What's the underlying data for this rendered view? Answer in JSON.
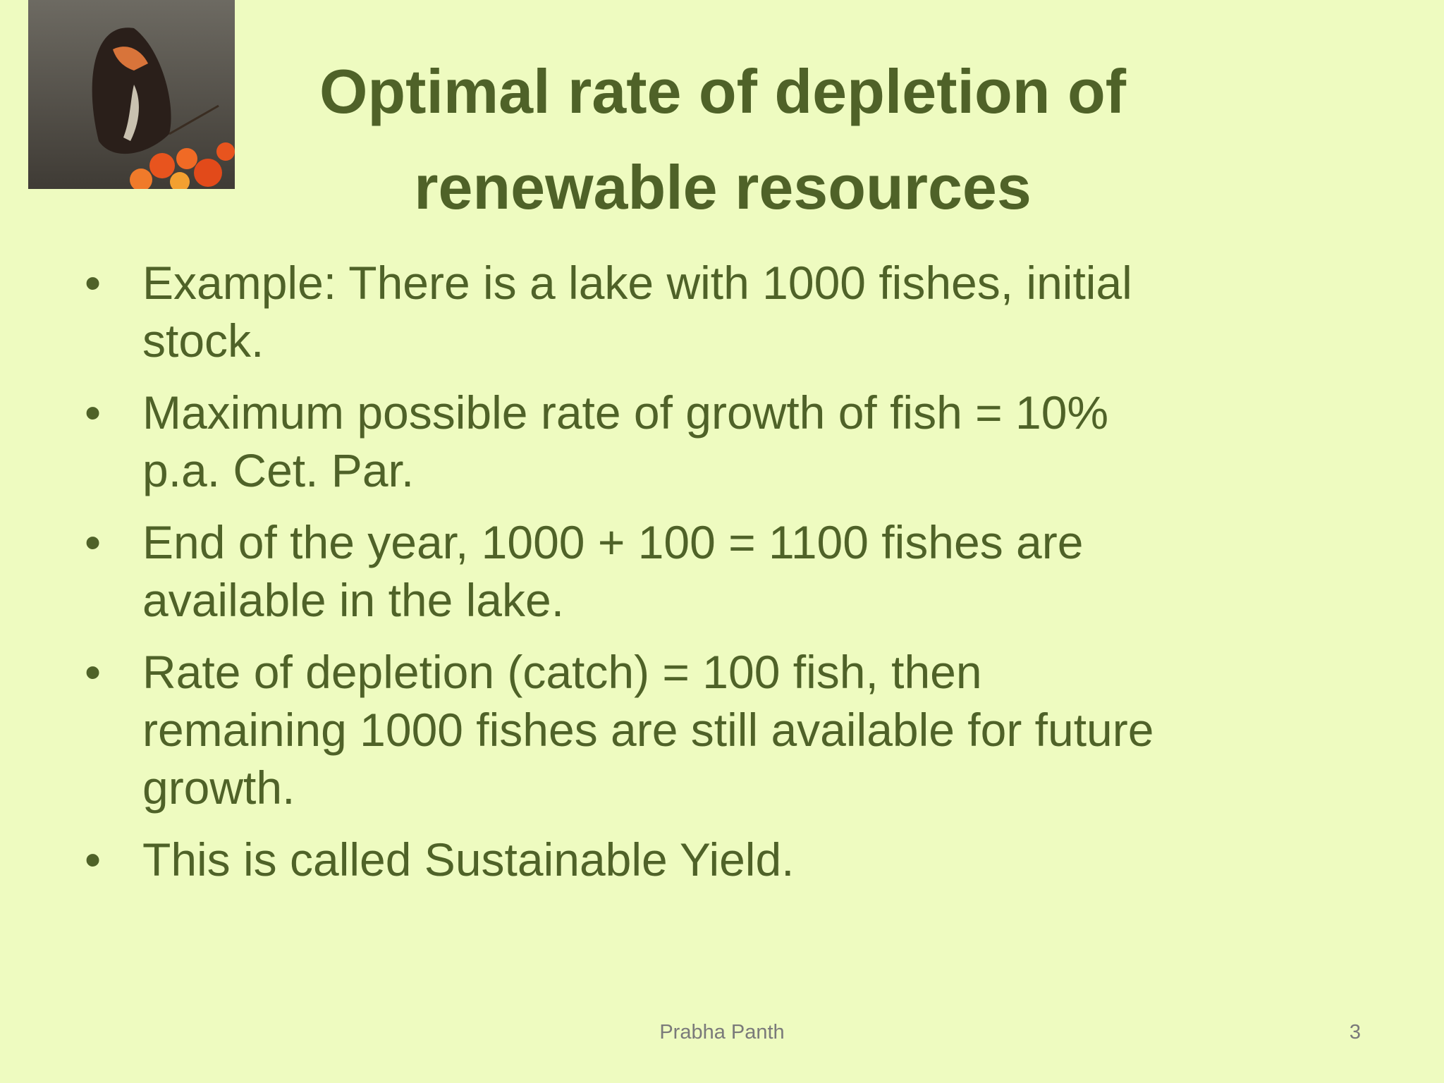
{
  "header": {
    "title_lines": [
      "Optimal rate of depletion of",
      "renewable resources"
    ]
  },
  "bullets": [
    {
      "lines": [
        "Example: There is a lake with 1000 fishes, initial",
        "stock."
      ]
    },
    {
      "lines": [
        "Maximum possible rate of growth of fish = 10%",
        "p.a. Cet. Par."
      ]
    },
    {
      "lines": [
        "End of the year, 1000 + 100 = 1100 fishes are",
        "available in the lake."
      ]
    },
    {
      "lines": [
        "Rate of depletion (catch) = 100 fish, then",
        "remaining 1000 fishes are still available for future",
        "growth."
      ]
    },
    {
      "lines": [
        "This is called Sustainable Yield."
      ]
    }
  ],
  "footer": {
    "author": "Prabha Panth",
    "page_number": "3"
  }
}
